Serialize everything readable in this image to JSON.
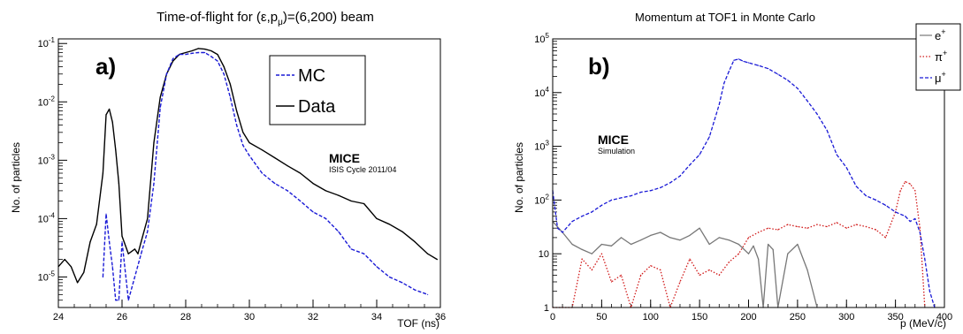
{
  "chart_data": [
    {
      "type": "line",
      "panel_label": "a)",
      "title_prefix": "Time-of-flight for (ε,p",
      "title_sub": "μ",
      "title_suffix": ")=(6,200) beam",
      "xlabel": "TOF (ns)",
      "ylabel": "No. of particles",
      "x_scale": "linear",
      "y_scale": "log",
      "xlim": [
        24,
        36
      ],
      "ylim": [
        3e-06,
        0.12
      ],
      "x_ticks": [
        24,
        26,
        28,
        30,
        32,
        34,
        36
      ],
      "y_tick_base": "10",
      "y_tick_exps": [
        "-1",
        "-2",
        "-3",
        "-4",
        "-5"
      ],
      "grid": false,
      "legend_position": "top-right",
      "annotation_title": "MICE",
      "annotation_sub": "ISIS Cycle 2011/04",
      "series": [
        {
          "name": "Data",
          "color": "#000000",
          "style": "solid",
          "x": [
            24.0,
            24.2,
            24.4,
            24.6,
            24.8,
            25.0,
            25.2,
            25.4,
            25.5,
            25.6,
            25.7,
            25.8,
            25.9,
            26.0,
            26.2,
            26.4,
            26.5,
            26.6,
            26.8,
            27.0,
            27.2,
            27.4,
            27.6,
            27.8,
            28.0,
            28.2,
            28.4,
            28.6,
            28.8,
            29.0,
            29.2,
            29.4,
            29.6,
            29.8,
            30.0,
            30.4,
            30.8,
            31.2,
            31.6,
            32.0,
            32.4,
            32.8,
            33.2,
            33.6,
            34.0,
            34.4,
            34.8,
            35.2,
            35.6,
            35.9
          ],
          "values": [
            1.5e-05,
            2e-05,
            1.5e-05,
            8e-06,
            1.2e-05,
            4e-05,
            8e-05,
            0.0006,
            0.006,
            0.0075,
            0.0045,
            0.0015,
            0.0004,
            5e-05,
            2.5e-05,
            3e-05,
            2.5e-05,
            4e-05,
            0.0001,
            0.002,
            0.012,
            0.03,
            0.05,
            0.065,
            0.07,
            0.075,
            0.082,
            0.08,
            0.075,
            0.065,
            0.04,
            0.02,
            0.007,
            0.003,
            0.002,
            0.0015,
            0.0011,
            0.0008,
            0.0006,
            0.0004,
            0.0003,
            0.00025,
            0.0002,
            0.00018,
            0.0001,
            8e-05,
            6e-05,
            4e-05,
            2.5e-05,
            2e-05
          ]
        },
        {
          "name": "MC",
          "color": "#1a1ad6",
          "style": "dashed",
          "x": [
            25.4,
            25.5,
            25.6,
            25.7,
            25.8,
            25.9,
            26.0,
            26.2,
            26.4,
            26.6,
            26.8,
            27.0,
            27.2,
            27.4,
            27.6,
            27.8,
            28.0,
            28.2,
            28.4,
            28.6,
            28.8,
            29.0,
            29.2,
            29.4,
            29.6,
            29.8,
            30.0,
            30.4,
            30.8,
            31.2,
            31.6,
            32.0,
            32.4,
            32.8,
            33.2,
            33.6,
            34.0,
            34.4,
            34.8,
            35.2,
            35.6
          ],
          "values": [
            1e-05,
            0.00012,
            4e-05,
            1.5e-05,
            4e-06,
            4e-06,
            4e-05,
            4e-06,
            1e-05,
            2.5e-05,
            6e-05,
            0.0004,
            0.008,
            0.03,
            0.055,
            0.065,
            0.065,
            0.068,
            0.07,
            0.07,
            0.06,
            0.05,
            0.03,
            0.012,
            0.004,
            0.0018,
            0.0012,
            0.0006,
            0.0004,
            0.0003,
            0.0002,
            0.00013,
            0.0001,
            6e-05,
            3e-05,
            2.5e-05,
            1.5e-05,
            1e-05,
            8e-06,
            6e-06,
            5e-06
          ]
        }
      ]
    },
    {
      "type": "line",
      "panel_label": "b)",
      "title": "Momentum at TOF1 in Monte Carlo",
      "xlabel": "p (MeV/c)",
      "ylabel": "No. of particles",
      "x_scale": "linear",
      "y_scale": "log",
      "xlim": [
        0,
        400
      ],
      "ylim": [
        1,
        100000
      ],
      "x_ticks": [
        0,
        50,
        100,
        150,
        200,
        250,
        300,
        350,
        400
      ],
      "y_tick_labels": [
        {
          "text": "1",
          "exp": ""
        },
        {
          "text": "10",
          "exp": ""
        },
        {
          "text": "10",
          "exp": "2"
        },
        {
          "text": "10",
          "exp": "3"
        },
        {
          "text": "10",
          "exp": "4"
        },
        {
          "text": "10",
          "exp": "5"
        }
      ],
      "grid": false,
      "legend_position": "top-right outside",
      "annotation_title": "MICE",
      "annotation_sub": "Simulation",
      "series": [
        {
          "name": "e",
          "name_sup": "+",
          "color": "#777777",
          "style": "solid",
          "x": [
            0,
            10,
            20,
            30,
            40,
            50,
            60,
            70,
            80,
            90,
            100,
            110,
            120,
            130,
            140,
            150,
            160,
            170,
            180,
            190,
            200,
            205,
            210,
            215,
            220,
            225,
            230,
            240,
            250,
            260,
            270
          ],
          "values": [
            40,
            25,
            15,
            12,
            10,
            15,
            14,
            20,
            15,
            18,
            22,
            25,
            20,
            18,
            22,
            30,
            15,
            20,
            18,
            15,
            10,
            14,
            8,
            1,
            15,
            12,
            1,
            10,
            15,
            5,
            1
          ]
        },
        {
          "name": "π",
          "name_sup": "+",
          "color": "#d11a1a",
          "style": "dotted",
          "x": [
            0,
            10,
            20,
            30,
            40,
            50,
            60,
            70,
            80,
            90,
            100,
            110,
            120,
            130,
            140,
            150,
            160,
            170,
            180,
            190,
            200,
            210,
            220,
            230,
            240,
            250,
            260,
            270,
            280,
            290,
            300,
            310,
            320,
            330,
            340,
            350,
            355,
            360,
            365,
            370,
            375,
            380
          ],
          "values": [
            1,
            1,
            1,
            8,
            5,
            10,
            3,
            4,
            1,
            4,
            6,
            5,
            1,
            3,
            8,
            4,
            5,
            4,
            7,
            10,
            20,
            25,
            30,
            28,
            35,
            32,
            30,
            35,
            32,
            38,
            30,
            35,
            32,
            28,
            20,
            60,
            150,
            220,
            200,
            150,
            30,
            1
          ]
        },
        {
          "name": "μ",
          "name_sup": "+",
          "color": "#1a1ad6",
          "style": "dashed",
          "x": [
            0,
            5,
            10,
            20,
            30,
            40,
            50,
            60,
            70,
            80,
            90,
            100,
            110,
            120,
            130,
            140,
            150,
            160,
            170,
            175,
            180,
            185,
            190,
            195,
            200,
            210,
            220,
            230,
            240,
            250,
            260,
            270,
            280,
            290,
            300,
            310,
            320,
            330,
            340,
            350,
            360,
            365,
            370,
            375,
            380,
            385,
            390
          ],
          "values": [
            150,
            30,
            25,
            40,
            50,
            60,
            80,
            100,
            110,
            120,
            140,
            150,
            170,
            210,
            280,
            450,
            700,
            1500,
            6000,
            15000,
            25000,
            40000,
            42000,
            38000,
            36000,
            32000,
            28000,
            22000,
            17000,
            12000,
            7000,
            4000,
            2000,
            700,
            400,
            180,
            120,
            100,
            80,
            60,
            50,
            40,
            45,
            25,
            8,
            2,
            1
          ]
        }
      ]
    }
  ]
}
